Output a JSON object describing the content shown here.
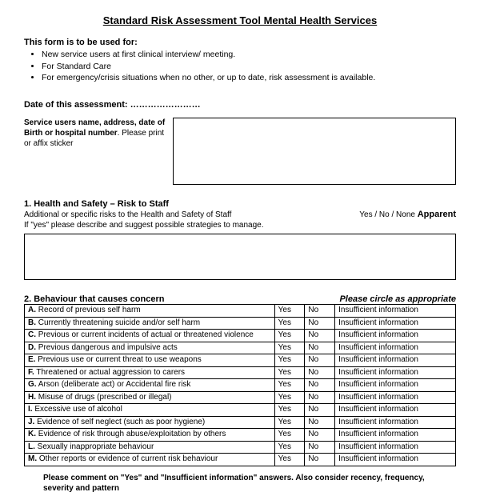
{
  "title": "Standard Risk Assessment Tool Mental Health Services",
  "usage_heading": "This form is to be used for:",
  "usage_items": [
    "New service users at first clinical interview/ meeting.",
    "For Standard Care",
    "For emergency/crisis situations when no other, or up to date, risk assessment is available."
  ],
  "date_label": "Date of this assessment: ……………………",
  "service_label_bold": "Service users name, address, date of Birth or hospital number",
  "service_label_rest": ". Please print or affix sticker",
  "section1_heading": "1. Health and Safety – Risk to Staff",
  "section1_line1": "Additional or specific risks to the Health and Safety of  Staff",
  "section1_line2": "If \"yes\" please describe and suggest possible strategies to manage.",
  "section1_options_prefix": "Yes  / No / None ",
  "section1_options_apparent": "Apparent",
  "section2_heading": "2.  Behaviour that causes concern",
  "section2_instruction": "Please circle as appropriate",
  "table_yes": "Yes",
  "table_no": "No",
  "table_ins": "Insufficient information",
  "rows": [
    {
      "letter": "A.",
      "text": " Record of previous self harm"
    },
    {
      "letter": "B.",
      "text": " Currently threatening suicide and/or self harm"
    },
    {
      "letter": "C.",
      "text": " Previous or current incidents of actual or threatened violence"
    },
    {
      "letter": "D.",
      "text": " Previous dangerous and impulsive acts"
    },
    {
      "letter": "E.",
      "text": " Previous use or current threat to use weapons"
    },
    {
      "letter": "F.",
      "text": " Threatened or actual aggression to carers"
    },
    {
      "letter": "G.",
      "text": " Arson (deliberate act) or Accidental fire risk"
    },
    {
      "letter": "H.",
      "text": " Misuse of drugs (prescribed or illegal)"
    },
    {
      "letter": "I.",
      "text": " Excessive use of alcohol"
    },
    {
      "letter": "J.",
      "text": " Evidence of self neglect (such as poor hygiene)"
    },
    {
      "letter": "K.",
      "text": " Evidence of risk through abuse/exploitation by others"
    },
    {
      "letter": "L.",
      "text": " Sexually inappropriate behaviour"
    },
    {
      "letter": "M.",
      "text": " Other reports or evidence of current risk behaviour"
    }
  ],
  "footnote": "Please comment on \"Yes\" and \"Insufficient information\" answers.  Also consider recency, frequency, severity and pattern"
}
